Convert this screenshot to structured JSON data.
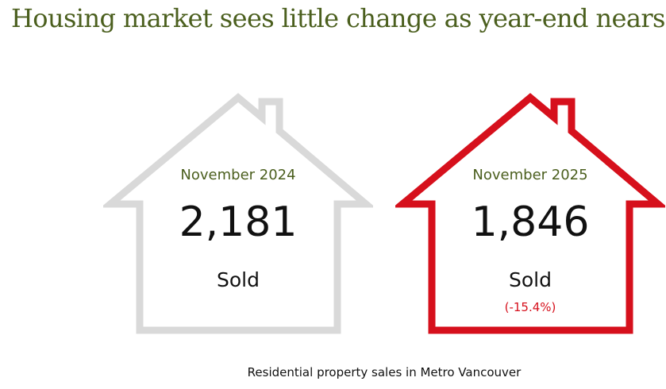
{
  "title": "Housing market sees little change as year-end nears",
  "houses": [
    {
      "period": "November 2024",
      "count": "2,181",
      "label": "Sold",
      "change": "",
      "outline_color": "#d9d9d9"
    },
    {
      "period": "November 2025",
      "count": "1,846",
      "label": "Sold",
      "change": "(-15.4%)",
      "outline_color": "#d6101c"
    }
  ],
  "caption": "Residential property sales in Metro Vancouver",
  "colors": {
    "title": "#4b5f1e",
    "accent_red": "#d6101c",
    "neutral_gray": "#d9d9d9"
  }
}
